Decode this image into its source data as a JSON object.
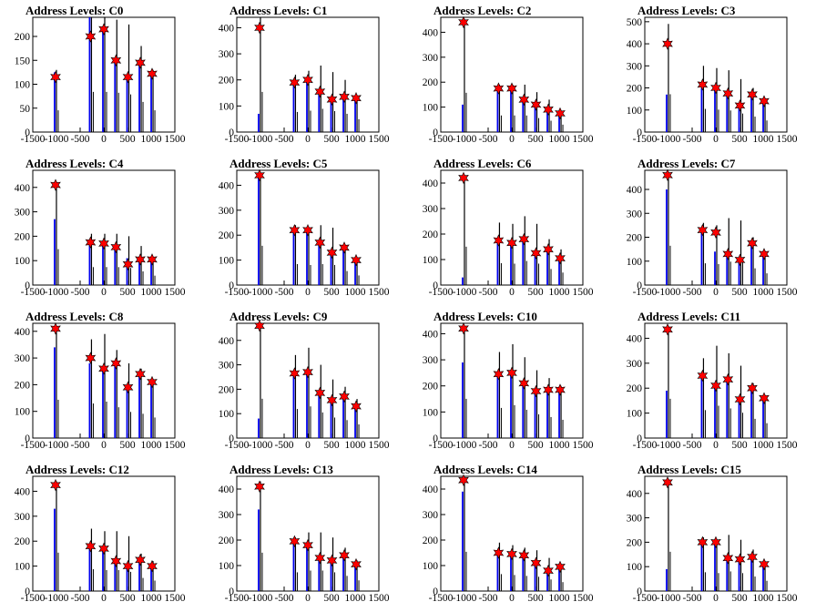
{
  "chart_data": [
    {
      "type": "bar",
      "title": "Address Levels: C0",
      "xlim": [
        -1500,
        1500
      ],
      "ylim": [
        0,
        240
      ],
      "yticks": [
        0,
        50,
        100,
        150,
        200
      ],
      "xticks": [
        -1500,
        -1000,
        -500,
        0,
        500,
        1000,
        1500
      ],
      "x": [
        -1020,
        -280,
        0,
        255,
        510,
        770,
        1020
      ],
      "black_peaks": [
        130,
        240,
        240,
        235,
        225,
        180,
        130
      ],
      "blue_peaks": [
        125,
        240,
        220,
        150,
        120,
        150,
        125
      ],
      "markers": [
        115,
        200,
        215,
        150,
        115,
        145,
        122
      ]
    },
    {
      "type": "bar",
      "title": "Address Levels: C1",
      "xlim": [
        -1500,
        1500
      ],
      "ylim": [
        0,
        440
      ],
      "yticks": [
        0,
        100,
        200,
        300,
        400
      ],
      "xticks": [
        -1500,
        -1000,
        -500,
        0,
        500,
        1000,
        1500
      ],
      "x": [
        -1020,
        -280,
        0,
        255,
        510,
        770,
        1020
      ],
      "black_peaks": [
        440,
        220,
        235,
        255,
        230,
        200,
        140
      ],
      "blue_peaks": [
        70,
        200,
        190,
        160,
        120,
        140,
        130
      ],
      "markers": [
        400,
        190,
        200,
        155,
        125,
        135,
        130
      ]
    },
    {
      "type": "bar",
      "title": "Address Levels: C2",
      "xlim": [
        -1500,
        1500
      ],
      "ylim": [
        0,
        460
      ],
      "yticks": [
        0,
        100,
        200,
        300,
        400
      ],
      "xticks": [
        -1500,
        -1000,
        -500,
        0,
        500,
        1000,
        1500
      ],
      "x": [
        -1020,
        -280,
        0,
        255,
        510,
        770,
        1020
      ],
      "black_peaks": [
        450,
        190,
        190,
        190,
        160,
        130,
        85
      ],
      "blue_peaks": [
        110,
        180,
        170,
        130,
        110,
        90,
        70
      ],
      "markers": [
        440,
        175,
        175,
        130,
        110,
        90,
        75
      ]
    },
    {
      "type": "bar",
      "title": "Address Levels: C3",
      "xlim": [
        -1500,
        1500
      ],
      "ylim": [
        0,
        520
      ],
      "yticks": [
        0,
        100,
        200,
        300,
        400,
        500
      ],
      "xticks": [
        -1500,
        -1000,
        -500,
        0,
        500,
        1000,
        1500
      ],
      "x": [
        -1020,
        -280,
        0,
        255,
        510,
        770,
        1020
      ],
      "black_peaks": [
        490,
        300,
        290,
        280,
        240,
        200,
        150
      ],
      "blue_peaks": [
        170,
        200,
        190,
        180,
        130,
        170,
        140
      ],
      "markers": [
        400,
        215,
        200,
        175,
        120,
        170,
        140
      ]
    },
    {
      "type": "bar",
      "title": "Address Levels: C4",
      "xlim": [
        -1500,
        1500
      ],
      "ylim": [
        0,
        470
      ],
      "yticks": [
        0,
        100,
        200,
        300,
        400
      ],
      "xticks": [
        -1500,
        -1000,
        -500,
        0,
        500,
        1000,
        1500
      ],
      "x": [
        -1020,
        -280,
        0,
        255,
        510,
        770,
        1020
      ],
      "black_peaks": [
        420,
        210,
        210,
        210,
        200,
        160,
        110
      ],
      "blue_peaks": [
        270,
        180,
        170,
        150,
        110,
        110,
        100
      ],
      "markers": [
        410,
        175,
        170,
        155,
        85,
        105,
        105
      ]
    },
    {
      "type": "bar",
      "title": "Address Levels: C5",
      "xlim": [
        -1500,
        1500
      ],
      "ylim": [
        0,
        460
      ],
      "yticks": [
        0,
        100,
        200,
        300,
        400
      ],
      "xticks": [
        -1500,
        -1000,
        -500,
        0,
        500,
        1000,
        1500
      ],
      "x": [
        -1020,
        -280,
        0,
        255,
        510,
        770,
        1020
      ],
      "black_peaks": [
        450,
        240,
        230,
        240,
        230,
        160,
        110
      ],
      "blue_peaks": [
        440,
        220,
        210,
        170,
        130,
        150,
        100
      ],
      "markers": [
        440,
        220,
        220,
        170,
        130,
        150,
        100
      ]
    },
    {
      "type": "bar",
      "title": "Address Levels: C6",
      "xlim": [
        -1500,
        1500
      ],
      "ylim": [
        0,
        450
      ],
      "yticks": [
        0,
        100,
        200,
        300,
        400
      ],
      "xticks": [
        -1500,
        -1000,
        -500,
        0,
        500,
        1000,
        1500
      ],
      "x": [
        -1020,
        -280,
        0,
        255,
        510,
        770,
        1020
      ],
      "black_peaks": [
        430,
        245,
        240,
        270,
        240,
        180,
        140
      ],
      "blue_peaks": [
        30,
        175,
        160,
        180,
        130,
        140,
        110
      ],
      "markers": [
        420,
        175,
        165,
        180,
        125,
        140,
        105
      ]
    },
    {
      "type": "bar",
      "title": "Address Levels: C7",
      "xlim": [
        -1500,
        1500
      ],
      "ylim": [
        0,
        480
      ],
      "yticks": [
        0,
        100,
        200,
        300,
        400
      ],
      "xticks": [
        -1500,
        -1000,
        -500,
        0,
        500,
        1000,
        1500
      ],
      "x": [
        -1020,
        -280,
        0,
        255,
        510,
        770,
        1020
      ],
      "black_peaks": [
        470,
        260,
        250,
        280,
        270,
        200,
        140
      ],
      "blue_peaks": [
        400,
        230,
        140,
        130,
        110,
        170,
        130
      ],
      "markers": [
        460,
        230,
        220,
        130,
        105,
        175,
        130
      ]
    },
    {
      "type": "bar",
      "title": "Address Levels: C8",
      "xlim": [
        -1500,
        1500
      ],
      "ylim": [
        0,
        430
      ],
      "yticks": [
        0,
        100,
        200,
        300,
        400
      ],
      "xticks": [
        -1500,
        -1000,
        -500,
        0,
        500,
        1000,
        1500
      ],
      "x": [
        -1020,
        -280,
        0,
        255,
        510,
        770,
        1020
      ],
      "black_peaks": [
        410,
        370,
        390,
        330,
        280,
        260,
        220
      ],
      "blue_peaks": [
        340,
        280,
        260,
        280,
        190,
        240,
        210
      ],
      "markers": [
        410,
        300,
        260,
        280,
        190,
        240,
        210
      ]
    },
    {
      "type": "bar",
      "title": "Address Levels: C9",
      "xlim": [
        -1500,
        1500
      ],
      "ylim": [
        0,
        470
      ],
      "yticks": [
        0,
        100,
        200,
        300,
        400
      ],
      "xticks": [
        -1500,
        -1000,
        -500,
        0,
        500,
        1000,
        1500
      ],
      "x": [
        -1020,
        -280,
        0,
        255,
        510,
        770,
        1020
      ],
      "black_peaks": [
        460,
        340,
        370,
        300,
        240,
        210,
        160
      ],
      "blue_peaks": [
        80,
        270,
        260,
        190,
        160,
        170,
        130
      ],
      "markers": [
        460,
        265,
        270,
        185,
        155,
        170,
        130
      ]
    },
    {
      "type": "bar",
      "title": "Address Levels: C10",
      "xlim": [
        -1500,
        1500
      ],
      "ylim": [
        0,
        440
      ],
      "yticks": [
        0,
        100,
        200,
        300,
        400
      ],
      "xticks": [
        -1500,
        -1000,
        -500,
        0,
        500,
        1000,
        1500
      ],
      "x": [
        -1020,
        -280,
        0,
        255,
        510,
        770,
        1020
      ],
      "black_peaks": [
        430,
        330,
        360,
        310,
        260,
        230,
        200
      ],
      "blue_peaks": [
        290,
        240,
        240,
        210,
        180,
        190,
        180
      ],
      "markers": [
        420,
        245,
        250,
        210,
        180,
        185,
        185
      ]
    },
    {
      "type": "bar",
      "title": "Address Levels: C11",
      "xlim": [
        -1500,
        1500
      ],
      "ylim": [
        0,
        460
      ],
      "yticks": [
        0,
        100,
        200,
        300,
        400
      ],
      "xticks": [
        -1500,
        -1000,
        -500,
        0,
        500,
        1000,
        1500
      ],
      "x": [
        -1020,
        -280,
        0,
        255,
        510,
        770,
        1020
      ],
      "black_peaks": [
        450,
        320,
        370,
        340,
        290,
        220,
        170
      ],
      "blue_peaks": [
        190,
        250,
        210,
        230,
        160,
        200,
        160
      ],
      "markers": [
        435,
        250,
        210,
        235,
        155,
        200,
        160
      ]
    },
    {
      "type": "bar",
      "title": "Address Levels: C12",
      "xlim": [
        -1500,
        1500
      ],
      "ylim": [
        0,
        460
      ],
      "yticks": [
        0,
        100,
        200,
        300,
        400
      ],
      "xticks": [
        -1500,
        -1000,
        -500,
        0,
        500,
        1000,
        1500
      ],
      "x": [
        -1020,
        -280,
        0,
        255,
        510,
        770,
        1020
      ],
      "black_peaks": [
        440,
        250,
        240,
        240,
        220,
        150,
        120
      ],
      "blue_peaks": [
        330,
        180,
        170,
        120,
        100,
        120,
        100
      ],
      "markers": [
        425,
        180,
        170,
        120,
        100,
        125,
        100
      ]
    },
    {
      "type": "bar",
      "title": "Address Levels: C13",
      "xlim": [
        -1500,
        1500
      ],
      "ylim": [
        0,
        450
      ],
      "yticks": [
        0,
        100,
        200,
        300,
        400
      ],
      "xticks": [
        -1500,
        -1000,
        -500,
        0,
        500,
        1000,
        1500
      ],
      "x": [
        -1020,
        -280,
        0,
        255,
        510,
        770,
        1020
      ],
      "black_peaks": [
        430,
        210,
        230,
        230,
        210,
        170,
        120
      ],
      "blue_peaks": [
        320,
        190,
        170,
        130,
        120,
        140,
        110
      ],
      "markers": [
        410,
        195,
        180,
        130,
        120,
        140,
        105
      ]
    },
    {
      "type": "bar",
      "title": "Address Levels: C14",
      "xlim": [
        -1500,
        1500
      ],
      "ylim": [
        0,
        450
      ],
      "yticks": [
        0,
        100,
        200,
        300,
        400
      ],
      "xticks": [
        -1500,
        -1000,
        -500,
        0,
        500,
        1000,
        1500
      ],
      "x": [
        -1020,
        -280,
        0,
        255,
        510,
        770,
        1020
      ],
      "black_peaks": [
        440,
        190,
        180,
        170,
        160,
        130,
        100
      ],
      "blue_peaks": [
        390,
        150,
        140,
        140,
        110,
        80,
        90
      ],
      "markers": [
        435,
        150,
        145,
        140,
        110,
        80,
        95
      ]
    },
    {
      "type": "bar",
      "title": "Address Levels: C15",
      "xlim": [
        -1500,
        1500
      ],
      "ylim": [
        0,
        470
      ],
      "yticks": [
        0,
        100,
        200,
        300,
        400
      ],
      "xticks": [
        -1500,
        -1000,
        -500,
        0,
        500,
        1000,
        1500
      ],
      "x": [
        -1020,
        -280,
        0,
        255,
        510,
        770,
        1020
      ],
      "black_peaks": [
        460,
        220,
        210,
        230,
        210,
        170,
        120
      ],
      "blue_peaks": [
        90,
        200,
        200,
        140,
        130,
        140,
        110
      ],
      "markers": [
        445,
        200,
        200,
        135,
        130,
        140,
        110
      ]
    }
  ],
  "colors": {
    "axis": "#000000",
    "black_line": "#000000",
    "blue_line": "#0000ee",
    "marker": "#ff0000",
    "marker_edge": "#000000"
  }
}
